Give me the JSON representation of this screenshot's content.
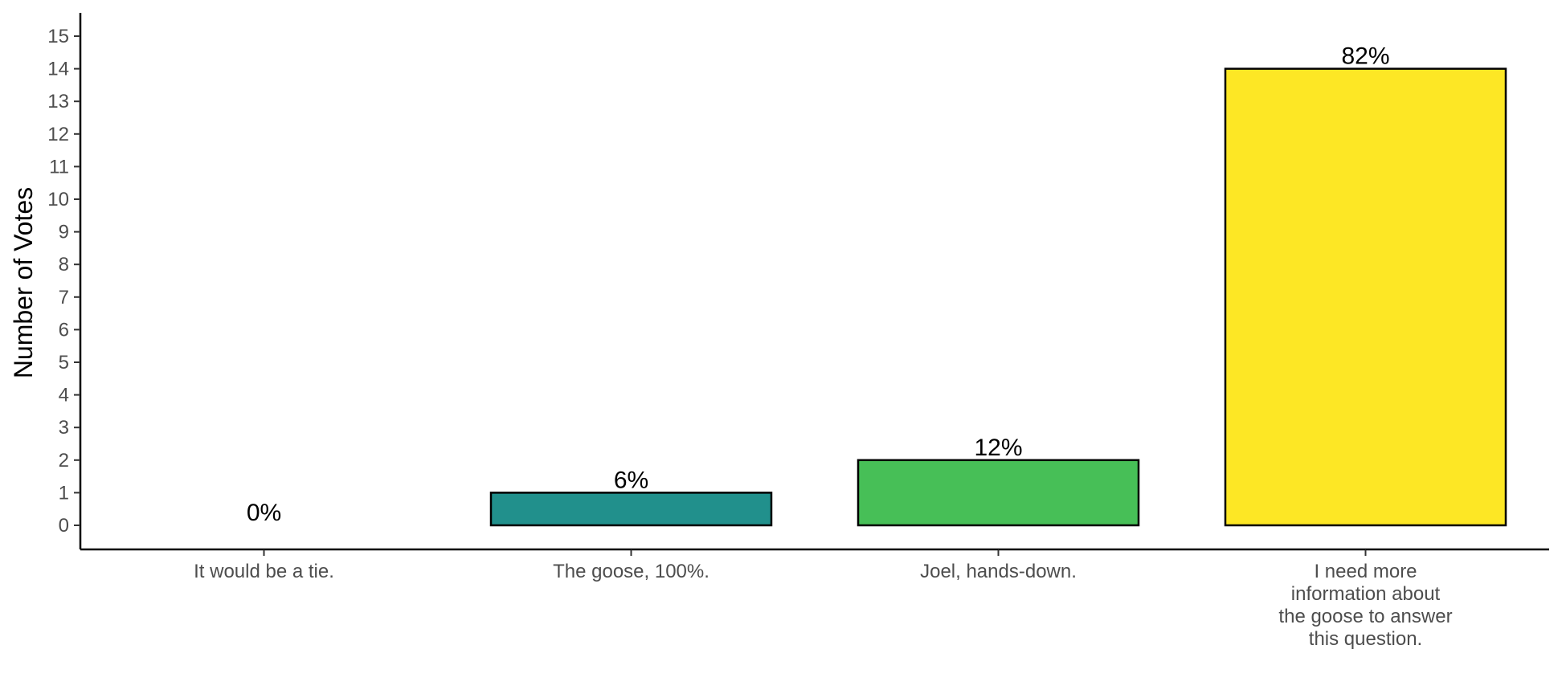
{
  "chart_data": {
    "type": "bar",
    "categories": [
      [
        "It would be a tie."
      ],
      [
        "The goose, 100%."
      ],
      [
        "Joel, hands-down."
      ],
      [
        "I need more",
        "information about",
        "the goose to answer",
        "this question."
      ]
    ],
    "values": [
      0,
      1,
      2,
      14
    ],
    "data_labels": [
      "0%",
      "6%",
      "12%",
      "82%"
    ],
    "bar_colors": [
      "#440154",
      "#21908C",
      "#47BF57",
      "#FDE725"
    ],
    "bar_outline_color": "#000000",
    "title": "",
    "xlabel": "",
    "ylabel": "Number of Votes",
    "ylim": [
      0,
      15
    ],
    "yticks": [
      0,
      1,
      2,
      3,
      4,
      5,
      6,
      7,
      8,
      9,
      10,
      11,
      12,
      13,
      14,
      15
    ],
    "grid": false,
    "legend": "none"
  }
}
